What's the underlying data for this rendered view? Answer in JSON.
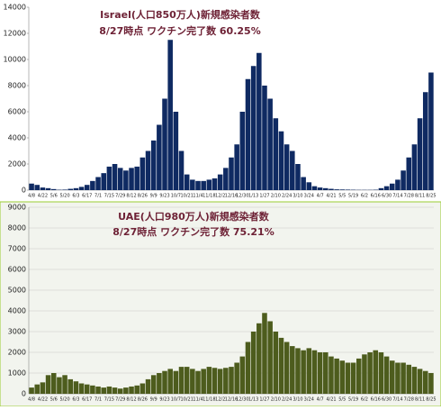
{
  "chart_data": [
    {
      "type": "bar",
      "title": "Israel(人口850万人)新規感染者数",
      "subtitle": "8/27時点 ワクチン完了数 60.25%",
      "categories": [
        "4/8",
        null,
        "4/22",
        null,
        "5/6",
        null,
        "5/20",
        null,
        "6/3",
        null,
        "6/17",
        null,
        "7/1",
        null,
        "7/15",
        null,
        "7/29",
        null,
        "8/12",
        null,
        "8/26",
        null,
        "9/9",
        null,
        "9/23",
        null,
        "10/7",
        null,
        "10/21",
        null,
        "11/4",
        null,
        "11/18",
        null,
        "12/2",
        null,
        "12/16",
        null,
        "12/30",
        null,
        "1/13",
        null,
        "1/27",
        null,
        "2/10",
        null,
        "2/24",
        null,
        "3/10",
        null,
        "3/24",
        null,
        "4/7",
        null,
        "4/21",
        null,
        "5/5",
        null,
        "5/19",
        null,
        "6/2",
        null,
        "6/16",
        null,
        "6/30",
        null,
        "7/14",
        null,
        "7/28",
        null,
        "8/11",
        null,
        "8/25"
      ],
      "values": [
        500,
        400,
        200,
        150,
        80,
        30,
        40,
        100,
        150,
        250,
        400,
        700,
        1000,
        1300,
        1800,
        2000,
        1700,
        1500,
        1700,
        1800,
        2500,
        3000,
        3800,
        5000,
        7000,
        11500,
        6000,
        3000,
        1200,
        800,
        700,
        700,
        800,
        900,
        1200,
        1700,
        2500,
        3500,
        6000,
        8500,
        9500,
        10500,
        8000,
        7000,
        5500,
        4500,
        3500,
        3000,
        2000,
        1000,
        600,
        300,
        200,
        150,
        100,
        60,
        50,
        40,
        30,
        20,
        20,
        20,
        30,
        150,
        300,
        500,
        800,
        1500,
        2500,
        3500,
        5500,
        7500,
        9000
      ],
      "color": "#0f2a62",
      "ylim": [
        0,
        14000
      ],
      "yticks": [
        0,
        2000,
        4000,
        6000,
        8000,
        10000,
        12000,
        14000
      ],
      "grid": false
    },
    {
      "type": "bar",
      "title": "UAE(人口980万人)新規感染者数",
      "subtitle": "8/27時点 ワクチン完了数 75.21%",
      "categories": [
        "4/8",
        null,
        "4/22",
        null,
        "5/6",
        null,
        "5/20",
        null,
        "6/3",
        null,
        "6/17",
        null,
        "7/1",
        null,
        "7/15",
        null,
        "7/29",
        null,
        "8/12",
        null,
        "8/26",
        null,
        "9/9",
        null,
        "9/23",
        null,
        "10/7",
        null,
        "10/21",
        null,
        "11/4",
        null,
        "11/18",
        null,
        "12/2",
        null,
        "12/16",
        null,
        "12/30",
        null,
        "1/13",
        null,
        "1/27",
        null,
        "2/10",
        null,
        "2/24",
        null,
        "3/10",
        null,
        "3/24",
        null,
        "4/7",
        null,
        "4/21",
        null,
        "5/5",
        null,
        "5/19",
        null,
        "6/2",
        null,
        "6/16",
        null,
        "6/30",
        null,
        "7/14",
        null,
        "7/28",
        null,
        "8/11",
        null,
        "8/25"
      ],
      "values": [
        300,
        450,
        550,
        900,
        1000,
        800,
        900,
        700,
        600,
        500,
        450,
        400,
        350,
        300,
        350,
        300,
        250,
        300,
        350,
        400,
        500,
        700,
        900,
        1000,
        1100,
        1200,
        1100,
        1300,
        1300,
        1200,
        1100,
        1200,
        1300,
        1250,
        1200,
        1250,
        1300,
        1500,
        1800,
        2500,
        3000,
        3400,
        3900,
        3500,
        3000,
        2700,
        2500,
        2300,
        2200,
        2100,
        2200,
        2100,
        2000,
        2000,
        1800,
        1700,
        1600,
        1500,
        1500,
        1700,
        1900,
        2000,
        2100,
        2000,
        1800,
        1600,
        1500,
        1500,
        1400,
        1300,
        1200,
        1100,
        1000
      ],
      "color": "#4d5c1d",
      "ylim": [
        0,
        9000
      ],
      "yticks": [
        0,
        1000,
        2000,
        3000,
        4000,
        5000,
        6000,
        7000,
        8000,
        9000
      ],
      "grid": true
    }
  ]
}
